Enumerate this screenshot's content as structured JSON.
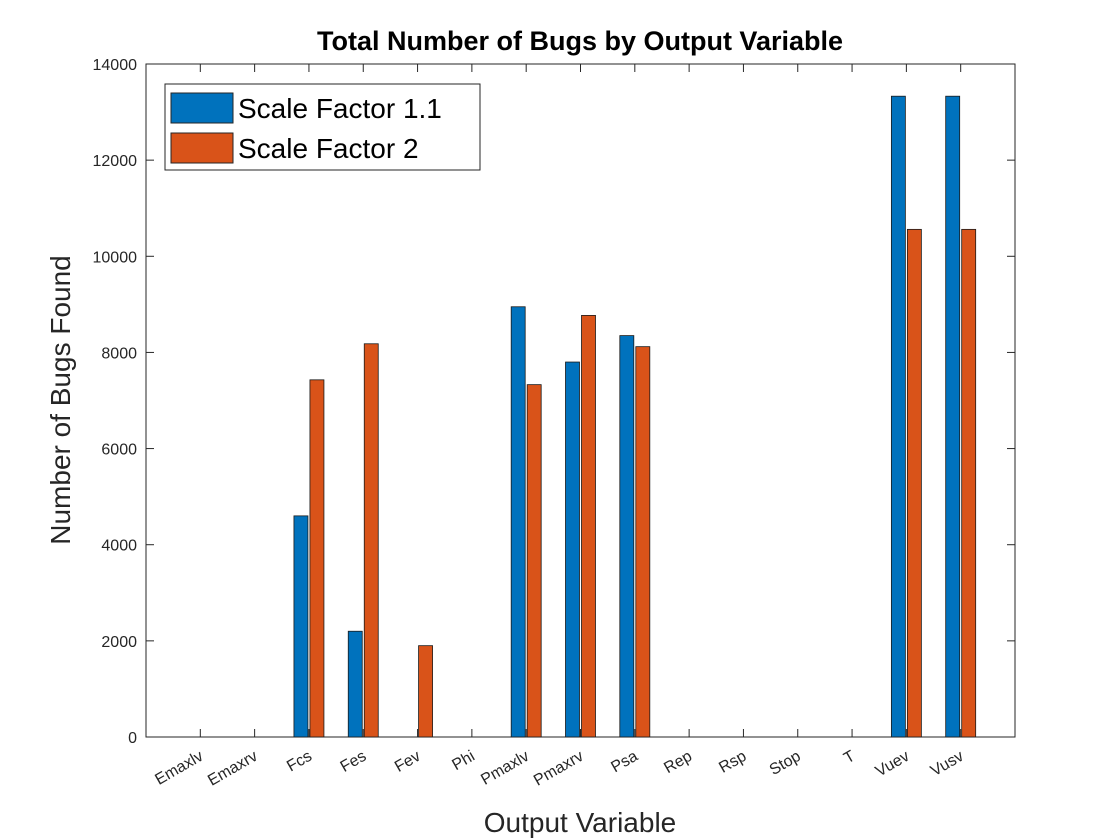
{
  "chart_data": {
    "type": "bar",
    "title": "Total Number of Bugs by Output Variable",
    "xlabel": "Output Variable",
    "ylabel": "Number of Bugs Found",
    "ylim": [
      0,
      14000
    ],
    "yticks": [
      0,
      2000,
      4000,
      6000,
      8000,
      10000,
      12000,
      14000
    ],
    "categories": [
      "Emaxlv",
      "Emaxrv",
      "Fcs",
      "Fes",
      "Fev",
      "Phi",
      "Pmaxlv",
      "Pmaxrv",
      "Psa",
      "Rep",
      "Rsp",
      "Stop",
      "T",
      "Vuev",
      "Vusv"
    ],
    "series": [
      {
        "name": "Scale Factor 1.1",
        "color": "#0072BD",
        "values": [
          0,
          0,
          4600,
          2200,
          0,
          0,
          8950,
          7800,
          8350,
          0,
          0,
          0,
          0,
          13330,
          13330
        ]
      },
      {
        "name": "Scale Factor 2",
        "color": "#D95319",
        "values": [
          0,
          0,
          7430,
          8180,
          1900,
          0,
          7330,
          8770,
          8120,
          0,
          0,
          0,
          0,
          10560,
          10560
        ]
      }
    ],
    "grid": false,
    "legend_position": "top-left",
    "xtick_rotation": -30
  }
}
